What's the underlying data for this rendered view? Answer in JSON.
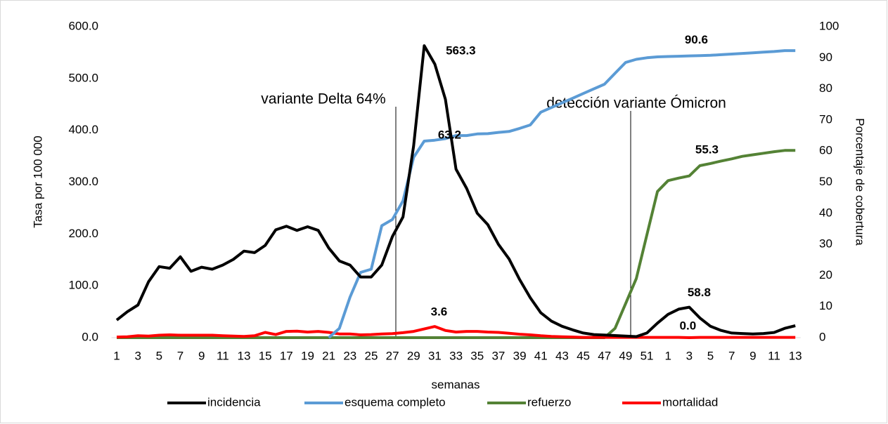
{
  "chart_data": {
    "type": "line",
    "y_label": "Tasa por 100 000",
    "y2_label": "Porcentaje de cobertura",
    "x_label": "semanas",
    "categories": [
      "1",
      null,
      "3",
      null,
      "5",
      null,
      "7",
      null,
      "9",
      null,
      "11",
      null,
      "13",
      null,
      "15",
      null,
      "17",
      null,
      "19",
      null,
      "21",
      null,
      "23",
      null,
      "25",
      null,
      "27",
      null,
      "29",
      null,
      "31",
      null,
      "33",
      null,
      "35",
      null,
      "37",
      null,
      "39",
      null,
      "41",
      null,
      "43",
      null,
      "45",
      null,
      "47",
      null,
      "49",
      null,
      "51",
      null,
      "1",
      null,
      "3",
      null,
      "5",
      null,
      "7",
      null,
      "9",
      null,
      "11",
      null,
      "13"
    ],
    "ylim": [
      0,
      600
    ],
    "yticks": [
      {
        "value": 0,
        "label": "0.0"
      },
      {
        "value": 100,
        "label": "100.0"
      },
      {
        "value": 200,
        "label": "200.0"
      },
      {
        "value": 300,
        "label": "300.0"
      },
      {
        "value": 400,
        "label": "400.0"
      },
      {
        "value": 500,
        "label": "500.0"
      },
      {
        "value": 600,
        "label": "600.0"
      }
    ],
    "y2lim": [
      0,
      100
    ],
    "y2ticks": [
      0,
      10,
      20,
      30,
      40,
      50,
      60,
      70,
      80,
      90,
      100
    ],
    "grid": false,
    "legend": "bottom",
    "annotations": [
      {
        "text": "variante Delta 64%"
      },
      {
        "text": "detección variante Ómicron"
      }
    ],
    "series": [
      {
        "name": "incidencia",
        "color": "#000000",
        "values": [
          34,
          50,
          63,
          108,
          137,
          134,
          156,
          128,
          136,
          132,
          140,
          151,
          167,
          164,
          178,
          208,
          215,
          207,
          214,
          207,
          173,
          148,
          140,
          117,
          117,
          140,
          195,
          233,
          370,
          563.3,
          528,
          460,
          325,
          288,
          240,
          218,
          180,
          152,
          112,
          77,
          48,
          32,
          22,
          15,
          9,
          6,
          5,
          4,
          3,
          2,
          9,
          28,
          45,
          55,
          58.8,
          38,
          22,
          14,
          9,
          8,
          7,
          8,
          10,
          18,
          23
        ],
        "value_labels": [
          null,
          null,
          null,
          null,
          null,
          null,
          null,
          null,
          null,
          null,
          null,
          null,
          null,
          null,
          null,
          null,
          null,
          null,
          null,
          null,
          null,
          null,
          null,
          null,
          null,
          null,
          null,
          null,
          null,
          "563.3",
          null,
          null,
          null,
          null,
          null,
          null,
          null,
          null,
          null,
          null,
          null,
          null,
          null,
          null,
          null,
          null,
          null,
          null,
          null,
          null,
          null,
          null,
          null,
          null,
          "58.8",
          null,
          null,
          null,
          null,
          null,
          null,
          null,
          null,
          null,
          null
        ]
      },
      {
        "name": "esquema completo",
        "color": "#5b9bd5",
        "axis": "y2",
        "values": [
          null,
          null,
          null,
          null,
          null,
          null,
          null,
          null,
          null,
          null,
          null,
          null,
          null,
          null,
          null,
          null,
          null,
          null,
          null,
          null,
          0,
          3,
          13,
          21,
          22,
          36,
          38,
          44,
          58,
          63.2,
          63.5,
          64,
          65,
          65,
          65.5,
          65.6,
          66,
          66.3,
          67.3,
          68.4,
          72.5,
          74,
          75.5,
          77,
          78.5,
          80,
          81.5,
          85,
          88.5,
          89.5,
          90,
          90.3,
          90.4,
          90.5,
          90.6,
          90.7,
          90.8,
          91,
          91.2,
          91.4,
          91.6,
          91.8,
          92,
          92.3,
          92.3
        ],
        "value_labels": [
          null,
          null,
          null,
          null,
          null,
          null,
          null,
          null,
          null,
          null,
          null,
          null,
          null,
          null,
          null,
          null,
          null,
          null,
          null,
          null,
          null,
          null,
          null,
          null,
          null,
          null,
          null,
          null,
          null,
          "63.2",
          null,
          null,
          null,
          null,
          null,
          null,
          null,
          null,
          null,
          null,
          null,
          null,
          null,
          null,
          null,
          null,
          null,
          null,
          null,
          null,
          null,
          null,
          null,
          null,
          "90.6",
          null,
          null,
          null,
          null,
          null,
          null,
          null,
          null,
          null,
          null
        ]
      },
      {
        "name": "refuerzo",
        "color": "#548235",
        "axis": "y2",
        "values": [
          0,
          0,
          0,
          0,
          0,
          0,
          0,
          0,
          0,
          0,
          0,
          0,
          0,
          0,
          0,
          0,
          0,
          0,
          0,
          0,
          0,
          0,
          0,
          0,
          0,
          0,
          0,
          0,
          0,
          0,
          0,
          0,
          0,
          0,
          0,
          0,
          0,
          0,
          0,
          0,
          0,
          0,
          0,
          0,
          0,
          0,
          0,
          3,
          11,
          19,
          33,
          47,
          50.5,
          51.3,
          52,
          55.3,
          56,
          56.8,
          57.5,
          58.3,
          58.8,
          59.3,
          59.8,
          60.2,
          60.2
        ],
        "value_labels": [
          null,
          null,
          null,
          null,
          null,
          null,
          null,
          null,
          null,
          null,
          null,
          null,
          null,
          null,
          null,
          null,
          null,
          null,
          null,
          null,
          null,
          null,
          null,
          null,
          null,
          null,
          null,
          null,
          null,
          null,
          null,
          null,
          null,
          null,
          null,
          null,
          null,
          null,
          null,
          null,
          null,
          null,
          null,
          null,
          null,
          null,
          null,
          null,
          null,
          null,
          null,
          null,
          null,
          null,
          null,
          "55.3",
          null,
          null,
          null,
          null,
          null,
          null,
          null,
          null,
          null
        ]
      },
      {
        "name": "mortalidad",
        "color": "#ff0000",
        "axis": "y2",
        "values": [
          0.2,
          0.3,
          0.6,
          0.5,
          0.8,
          0.9,
          0.8,
          0.8,
          0.8,
          0.8,
          0.6,
          0.5,
          0.4,
          0.6,
          1.7,
          1.0,
          2.0,
          2.1,
          1.8,
          2.0,
          1.7,
          1.2,
          1.2,
          0.9,
          1.0,
          1.2,
          1.3,
          1.6,
          2.0,
          2.8,
          3.6,
          2.3,
          1.8,
          2.0,
          2.0,
          1.8,
          1.7,
          1.4,
          1.1,
          0.9,
          0.6,
          0.4,
          0.3,
          0.2,
          0.1,
          0.1,
          0.1,
          0.1,
          0.1,
          0.1,
          0.1,
          0.1,
          0.1,
          0.1,
          0.0,
          0.1,
          0.1,
          0.1,
          0.1,
          0.1,
          0.1,
          0.1,
          0.1,
          0.1,
          0.1
        ],
        "value_labels": [
          null,
          null,
          null,
          null,
          null,
          null,
          null,
          null,
          null,
          null,
          null,
          null,
          null,
          null,
          null,
          null,
          null,
          null,
          null,
          null,
          null,
          null,
          null,
          null,
          null,
          null,
          null,
          null,
          null,
          null,
          "3.6",
          null,
          null,
          null,
          null,
          null,
          null,
          null,
          null,
          null,
          null,
          null,
          null,
          null,
          null,
          null,
          null,
          null,
          null,
          null,
          null,
          null,
          null,
          null,
          "0.0",
          null,
          null,
          null,
          null,
          null,
          null,
          null,
          null,
          null,
          null
        ]
      }
    ]
  }
}
